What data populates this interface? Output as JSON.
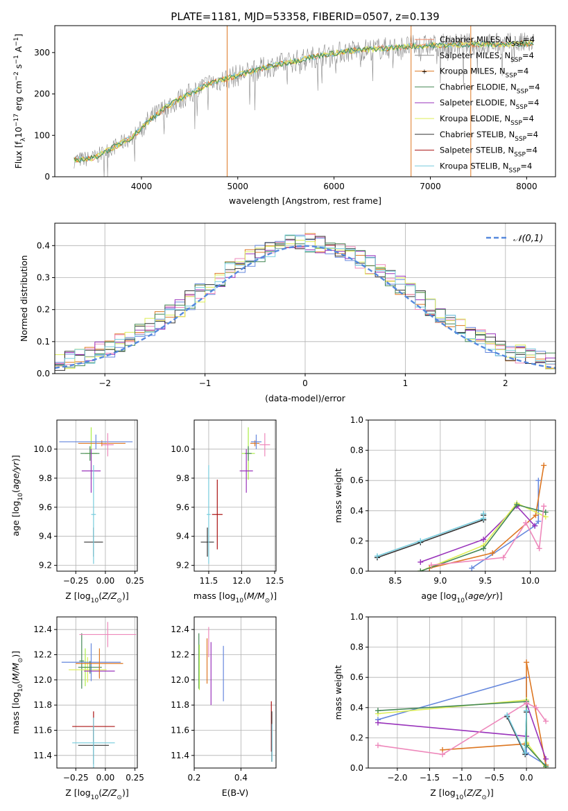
{
  "figure_title": "PLATE=1181, MJD=53358, FIBERID=0507, z=0.139",
  "colors": {
    "chabrier_miles": "#ee8866",
    "salpeter_miles": "#888888",
    "kroupa_miles": "#dd7722",
    "chabrier_elodie": "#448855",
    "salpeter_elodie": "#9933bb",
    "kroupa_elodie": "#ddee55",
    "chabrier_stelib": "#333333",
    "salpeter_stelib": "#aa1111",
    "kroupa_stelib": "#77ccdd",
    "blue": "#6688dd",
    "pink": "#ee88bb",
    "lime": "#aaee44",
    "gaussian": "#5588dd"
  },
  "chart_data": [
    {
      "id": "spectrum",
      "type": "line",
      "xlabel": "wavelength [Angstrom, rest frame]",
      "ylabel": "Flux [f_λ 10^-17 erg cm^-2 s^-1 A^-1]",
      "xlim": [
        3100,
        8300
      ],
      "ylim": [
        0,
        365
      ],
      "xticks": [
        4000,
        5000,
        6000,
        7000,
        8000
      ],
      "yticks": [
        0,
        100,
        200,
        300
      ],
      "legend": "top-right",
      "series": [
        {
          "name": "Chabrier MILES, N_SSP=4",
          "color_key": "chabrier_miles"
        },
        {
          "name": "Salpeter MILES, N_SSP=4",
          "color_key": "salpeter_miles"
        },
        {
          "name": "Kroupa MILES, N_SSP=4",
          "color_key": "kroupa_miles"
        },
        {
          "name": "Chabrier ELODIE, N_SSP=4",
          "color_key": "chabrier_elodie"
        },
        {
          "name": "Salpeter ELODIE, N_SSP=4",
          "color_key": "salpeter_elodie"
        },
        {
          "name": "Kroupa ELODIE, N_SSP=4",
          "color_key": "kroupa_elodie"
        },
        {
          "name": "Chabrier STELIB, N_SSP=4",
          "color_key": "chabrier_stelib"
        },
        {
          "name": "Salpeter STELIB, N_SSP=4",
          "color_key": "salpeter_stelib"
        },
        {
          "name": "Kroupa STELIB, N_SSP=4",
          "color_key": "kroupa_stelib"
        }
      ],
      "continuum": {
        "x": [
          3300,
          3500,
          3700,
          3900,
          4100,
          4300,
          4500,
          4700,
          5000,
          5300,
          5600,
          5900,
          6200,
          6500,
          6800,
          7100,
          7400,
          7700,
          8000,
          8100
        ],
        "y": [
          40,
          45,
          70,
          95,
          140,
          175,
          200,
          225,
          245,
          265,
          280,
          295,
          305,
          310,
          315,
          318,
          320,
          320,
          322,
          322
        ]
      }
    },
    {
      "id": "residuals",
      "type": "line",
      "xlabel": "(data-model)/error",
      "ylabel": "Normed distribution",
      "xlim": [
        -2.5,
        2.5
      ],
      "ylim": [
        0,
        0.47
      ],
      "xticks": [
        -2,
        -1,
        0,
        1,
        2
      ],
      "yticks": [
        0.0,
        0.1,
        0.2,
        0.3,
        0.4
      ],
      "legend": "top-right",
      "gaussian_label": "𝒩(0,1)",
      "bin_width": 0.1,
      "bin_start": -2.5
    },
    {
      "id": "age_vs_Z",
      "type": "scatter",
      "xlabel": "Z [log10(Z/Z⊙)]",
      "ylabel": "age  [log10(age/yr)]",
      "xlim": [
        -0.41,
        0.27
      ],
      "ylim": [
        9.16,
        10.2
      ],
      "xticks": [
        -0.25,
        0.0,
        0.25
      ],
      "xticklabels": [
        "−0.25",
        "0.00",
        "0.25"
      ],
      "yticks": [
        9.2,
        9.4,
        9.6,
        9.8,
        10.0
      ],
      "points": [
        {
          "x": -0.12,
          "xerr": 0.05,
          "y": 9.97,
          "yerr": 0.18,
          "color_key": "lime"
        },
        {
          "x": -0.13,
          "xerr": 0.08,
          "y": 9.97,
          "yerr": 0.05,
          "color_key": "chabrier_elodie"
        },
        {
          "x": -0.03,
          "xerr": 0.2,
          "y": 10.04,
          "yerr": 0.02,
          "color_key": "kroupa_miles"
        },
        {
          "x": -0.08,
          "xerr": 0.31,
          "y": 10.05,
          "yerr": 0.05,
          "color_key": "blue"
        },
        {
          "x": 0.02,
          "xerr": 0.05,
          "y": 10.03,
          "yerr": 0.08,
          "color_key": "pink"
        },
        {
          "x": -0.12,
          "xerr": 0.08,
          "y": 9.85,
          "yerr": 0.15,
          "color_key": "salpeter_elodie"
        },
        {
          "x": -0.1,
          "xerr": 0.08,
          "y": 9.36,
          "yerr": 0.1,
          "color_key": "chabrier_stelib"
        },
        {
          "x": -0.1,
          "xerr": 0.02,
          "y": 9.55,
          "yerr": 0.34,
          "color_key": "kroupa_stelib"
        }
      ]
    },
    {
      "id": "age_vs_mass",
      "type": "scatter",
      "xlabel": "mass [log10(M/M⊙)]",
      "ylabel": "",
      "xlim": [
        11.28,
        12.52
      ],
      "ylim": [
        9.16,
        10.2
      ],
      "xticks": [
        11.5,
        12.0,
        12.5
      ],
      "yticks": [
        9.2,
        9.4,
        9.6,
        9.8,
        10.0
      ],
      "points": [
        {
          "x": 12.1,
          "xerr": 0.1,
          "y": 9.97,
          "yerr": 0.18,
          "color_key": "lime"
        },
        {
          "x": 12.1,
          "xerr": 0.05,
          "y": 9.97,
          "yerr": 0.05,
          "color_key": "chabrier_elodie"
        },
        {
          "x": 12.2,
          "xerr": 0.07,
          "y": 10.04,
          "yerr": 0.02,
          "color_key": "kroupa_miles"
        },
        {
          "x": 12.22,
          "xerr": 0.08,
          "y": 10.05,
          "yerr": 0.05,
          "color_key": "blue"
        },
        {
          "x": 12.35,
          "xerr": 0.08,
          "y": 10.03,
          "yerr": 0.08,
          "color_key": "pink"
        },
        {
          "x": 12.07,
          "xerr": 0.1,
          "y": 9.85,
          "yerr": 0.15,
          "color_key": "salpeter_elodie"
        },
        {
          "x": 11.48,
          "xerr": 0.1,
          "y": 9.36,
          "yerr": 0.1,
          "color_key": "chabrier_stelib"
        },
        {
          "x": 11.63,
          "xerr": 0.08,
          "y": 9.55,
          "yerr": 0.24,
          "color_key": "salpeter_stelib"
        },
        {
          "x": 11.5,
          "xerr": 0.03,
          "y": 9.55,
          "yerr": 0.34,
          "color_key": "kroupa_stelib"
        }
      ]
    },
    {
      "id": "weight_vs_age",
      "type": "line",
      "xlabel": "age  [log10(age/yr)]",
      "ylabel": "mass weight",
      "xlim": [
        8.2,
        10.28
      ],
      "ylim": [
        0,
        1
      ],
      "xticks": [
        8.5,
        9.0,
        9.5,
        10.0
      ],
      "yticks": [
        0.0,
        0.2,
        0.4,
        0.6,
        0.8,
        1.0
      ],
      "series": [
        {
          "color_key": "chabrier_stelib",
          "x": [
            8.3,
            8.78,
            9.48,
            9.48
          ],
          "y": [
            0.09,
            0.19,
            0.34,
            0.37
          ]
        },
        {
          "color_key": "kroupa_stelib",
          "x": [
            8.3,
            8.78,
            9.48,
            9.48
          ],
          "y": [
            0.1,
            0.2,
            0.35,
            0.38
          ]
        },
        {
          "color_key": "blue",
          "x": [
            9.35,
            10.05,
            10.09,
            10.09
          ],
          "y": [
            0.02,
            0.3,
            0.33,
            0.6
          ]
        },
        {
          "color_key": "kroupa_miles",
          "x": [
            8.88,
            9.58,
            10.06,
            10.15
          ],
          "y": [
            0.02,
            0.12,
            0.37,
            0.7
          ]
        },
        {
          "color_key": "salpeter_elodie",
          "x": [
            8.78,
            9.48,
            9.85,
            10.05
          ],
          "y": [
            0.06,
            0.21,
            0.43,
            0.3
          ]
        },
        {
          "color_key": "kroupa_elodie",
          "x": [
            8.78,
            9.48,
            9.85,
            10.17
          ],
          "y": [
            0.0,
            0.17,
            0.45,
            0.36
          ]
        },
        {
          "color_key": "chabrier_elodie",
          "x": [
            8.78,
            9.48,
            9.85,
            10.17
          ],
          "y": [
            0.0,
            0.15,
            0.44,
            0.39
          ]
        },
        {
          "color_key": "pink",
          "x": [
            8.9,
            9.7,
            9.95,
            10.1,
            10.15
          ],
          "y": [
            0.04,
            0.09,
            0.32,
            0.15,
            0.43
          ]
        }
      ]
    },
    {
      "id": "mass_vs_Z",
      "type": "scatter",
      "xlabel": "Z [log10(Z/Z⊙)]",
      "ylabel": "mass [log10(M/M⊙)]",
      "xlim": [
        -0.41,
        0.27
      ],
      "ylim": [
        11.3,
        12.5
      ],
      "xticks": [
        -0.25,
        0.0,
        0.25
      ],
      "xticklabels": [
        "−0.25",
        "0.00",
        "0.25"
      ],
      "yticks": [
        11.4,
        11.6,
        11.8,
        12.0,
        12.2,
        12.4
      ],
      "points": [
        {
          "x": -0.2,
          "xerr": 0.02,
          "y": 12.15,
          "yerr": 0.22,
          "color_key": "chabrier_elodie"
        },
        {
          "x": -0.17,
          "xerr": 0.03,
          "y": 12.1,
          "yerr": 0.15,
          "color_key": "lime"
        },
        {
          "x": -0.15,
          "xerr": 0.16,
          "y": 12.08,
          "yerr": 0.1,
          "color_key": "kroupa_elodie"
        },
        {
          "x": -0.12,
          "xerr": 0.25,
          "y": 12.14,
          "yerr": 0.15,
          "color_key": "blue"
        },
        {
          "x": -0.13,
          "xerr": 0.1,
          "y": 12.1,
          "yerr": 0.05,
          "color_key": "chabrier_elodie"
        },
        {
          "x": -0.05,
          "xerr": 0.13,
          "y": 12.07,
          "yerr": 0.05,
          "color_key": "salpeter_elodie"
        },
        {
          "x": -0.05,
          "xerr": 0.2,
          "y": 12.13,
          "yerr": 0.12,
          "color_key": "kroupa_miles"
        },
        {
          "x": 0.02,
          "xerr": 0.24,
          "y": 12.36,
          "yerr": 0.1,
          "color_key": "pink"
        },
        {
          "x": -0.1,
          "xerr": 0.18,
          "y": 11.63,
          "yerr": 0.12,
          "color_key": "salpeter_stelib"
        },
        {
          "x": -0.1,
          "xerr": 0.13,
          "y": 11.48,
          "yerr": 0.15,
          "color_key": "chabrier_stelib"
        },
        {
          "x": -0.1,
          "xerr": 0.18,
          "y": 11.5,
          "yerr": 0.2,
          "color_key": "kroupa_stelib"
        }
      ]
    },
    {
      "id": "mass_vs_ebv",
      "type": "scatter",
      "xlabel": "E(B-V)",
      "ylabel": "",
      "xlim": [
        0.2,
        0.55
      ],
      "ylim": [
        11.3,
        12.5
      ],
      "xticks": [
        0.2,
        0.4
      ],
      "xticklabels": [
        "0.2",
        "0.4"
      ],
      "yticks": [
        11.4,
        11.6,
        11.8,
        12.0,
        12.2,
        12.4
      ],
      "points": [
        {
          "x": 0.22,
          "xerr": 0,
          "y": 12.15,
          "yerr": 0.22,
          "color_key": "chabrier_elodie"
        },
        {
          "x": 0.222,
          "xerr": 0,
          "y": 12.1,
          "yerr": 0.18,
          "color_key": "lime"
        },
        {
          "x": 0.255,
          "xerr": 0,
          "y": 12.15,
          "yerr": 0.18,
          "color_key": "kroupa_miles"
        },
        {
          "x": 0.262,
          "xerr": 0,
          "y": 12.3,
          "yerr": 0.12,
          "color_key": "pink"
        },
        {
          "x": 0.272,
          "xerr": 0,
          "y": 12.05,
          "yerr": 0.25,
          "color_key": "salpeter_elodie"
        },
        {
          "x": 0.325,
          "xerr": 0,
          "y": 12.05,
          "yerr": 0.22,
          "color_key": "blue"
        },
        {
          "x": 0.53,
          "xerr": 0,
          "y": 11.63,
          "yerr": 0.2,
          "color_key": "salpeter_stelib"
        },
        {
          "x": 0.532,
          "xerr": 0,
          "y": 11.55,
          "yerr": 0.2,
          "color_key": "chabrier_stelib"
        },
        {
          "x": 0.533,
          "xerr": 0,
          "y": 11.5,
          "yerr": 0.15,
          "color_key": "kroupa_stelib"
        }
      ]
    },
    {
      "id": "weight_vs_Z",
      "type": "line",
      "xlabel": "Z [log10(Z/Z⊙)]",
      "ylabel": "mass weight",
      "xlim": [
        -2.45,
        0.45
      ],
      "ylim": [
        0,
        1
      ],
      "xticks": [
        -2.0,
        -1.5,
        -1.0,
        -0.5,
        0.0
      ],
      "xticklabels": [
        "−2.0",
        "−1.5",
        "−1.0",
        "−0.5",
        "0.0"
      ],
      "yticks": [
        0.0,
        0.2,
        0.4,
        0.6,
        0.8,
        1.0
      ],
      "series": [
        {
          "color_key": "blue",
          "x": [
            -2.3,
            0.0,
            0.0,
            0.3
          ],
          "y": [
            0.32,
            0.6,
            0.1,
            0.02
          ]
        },
        {
          "color_key": "kroupa_miles",
          "x": [
            -1.3,
            0.0,
            0.0,
            0.3
          ],
          "y": [
            0.12,
            0.16,
            0.7,
            0.02
          ]
        },
        {
          "color_key": "salpeter_elodie",
          "x": [
            -2.3,
            0.0,
            0.0,
            0.3
          ],
          "y": [
            0.3,
            0.21,
            0.43,
            0.06
          ]
        },
        {
          "color_key": "kroupa_elodie",
          "x": [
            -2.3,
            0.0,
            0.0,
            0.3
          ],
          "y": [
            0.36,
            0.45,
            0.17,
            0.0
          ]
        },
        {
          "color_key": "chabrier_elodie",
          "x": [
            -2.3,
            0.0,
            0.0,
            0.3
          ],
          "y": [
            0.38,
            0.44,
            0.15,
            0.01
          ]
        },
        {
          "color_key": "pink",
          "x": [
            -2.3,
            -1.3,
            0.0,
            0.15,
            0.3
          ],
          "y": [
            0.15,
            0.09,
            0.43,
            0.4,
            0.31
          ]
        },
        {
          "color_key": "chabrier_stelib",
          "x": [
            -0.3,
            -0.02,
            0.0
          ],
          "y": [
            0.34,
            0.09,
            0.37
          ]
        },
        {
          "color_key": "kroupa_stelib",
          "x": [
            -0.3,
            -0.02,
            0.0
          ],
          "y": [
            0.35,
            0.1,
            0.38
          ]
        }
      ]
    }
  ]
}
